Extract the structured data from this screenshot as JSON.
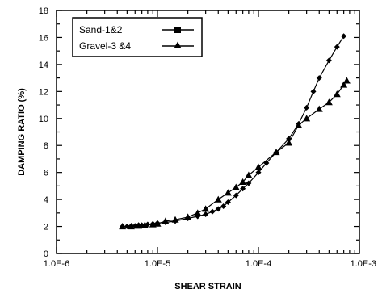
{
  "chart_data": {
    "type": "line",
    "title": "",
    "xlabel": "SHEAR STRAIN",
    "ylabel": "DAMPING RATIO (%)",
    "xscale": "log",
    "xlim": [
      1e-06,
      0.001
    ],
    "ylim": [
      0,
      18
    ],
    "x_tick_labels": [
      "1.0E-6",
      "1.0E-5",
      "1.0E-4",
      "1.0E-3"
    ],
    "y_tick_labels": [
      "0",
      "2",
      "4",
      "6",
      "8",
      "10",
      "12",
      "14",
      "16",
      "18"
    ],
    "grid": false,
    "legend_position": "top-left",
    "series": [
      {
        "name": "Sand-1&2",
        "marker": "diamond",
        "color": "#000000",
        "x": [
          4.5e-06,
          5e-06,
          5.5e-06,
          6e-06,
          6.5e-06,
          7e-06,
          7.5e-06,
          8e-06,
          9e-06,
          1e-05,
          1.2e-05,
          1.5e-05,
          2e-05,
          2.5e-05,
          3e-05,
          3.5e-05,
          4e-05,
          4.5e-05,
          5e-05,
          6e-05,
          7e-05,
          8e-05,
          0.0001,
          0.00012,
          0.00015,
          0.0002,
          0.00025,
          0.0003,
          0.00035,
          0.0004,
          0.0005,
          0.0006,
          0.0007
        ],
        "y": [
          2.0,
          2.0,
          2.05,
          2.05,
          2.1,
          2.1,
          2.1,
          2.15,
          2.2,
          2.25,
          2.3,
          2.4,
          2.6,
          2.75,
          2.9,
          3.1,
          3.3,
          3.5,
          3.8,
          4.3,
          4.8,
          5.2,
          6.0,
          6.7,
          7.5,
          8.5,
          9.6,
          10.8,
          12.0,
          13.0,
          14.3,
          15.3,
          16.1
        ]
      },
      {
        "name": "Gravel-3 &4",
        "marker": "triangle",
        "color": "#000000",
        "x": [
          4.5e-06,
          5.5e-06,
          6.5e-06,
          7.5e-06,
          9e-06,
          1e-05,
          1.2e-05,
          1.5e-05,
          2e-05,
          2.5e-05,
          3e-05,
          4e-05,
          5e-05,
          6e-05,
          7e-05,
          8e-05,
          0.0001,
          0.00015,
          0.0002,
          0.00025,
          0.0003,
          0.0004,
          0.0005,
          0.0006,
          0.0007,
          0.00075
        ],
        "y": [
          2.0,
          2.0,
          2.05,
          2.1,
          2.15,
          2.2,
          2.4,
          2.5,
          2.7,
          3.0,
          3.3,
          4.0,
          4.5,
          4.9,
          5.3,
          5.8,
          6.4,
          7.5,
          8.2,
          9.5,
          10.0,
          10.7,
          11.2,
          11.8,
          12.5,
          12.8
        ]
      }
    ]
  }
}
